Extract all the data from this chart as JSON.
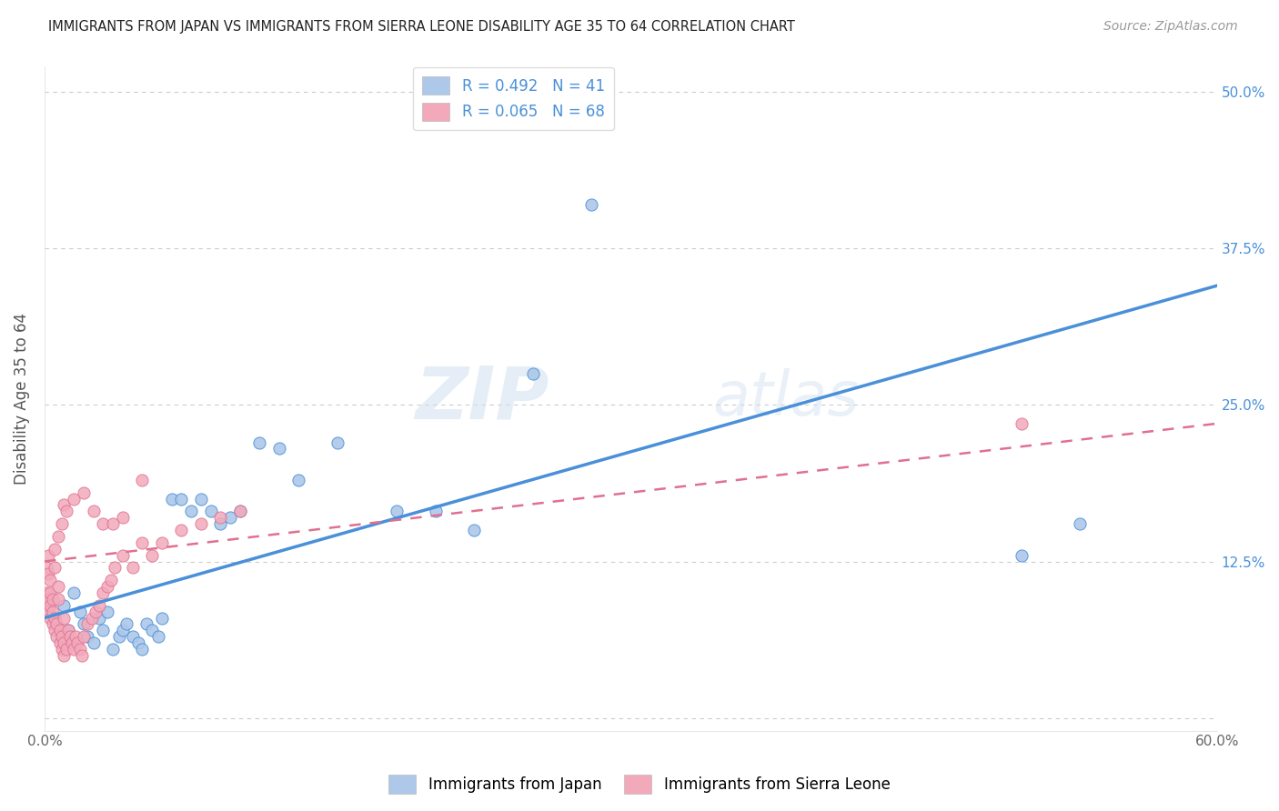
{
  "title": "IMMIGRANTS FROM JAPAN VS IMMIGRANTS FROM SIERRA LEONE DISABILITY AGE 35 TO 64 CORRELATION CHART",
  "source": "Source: ZipAtlas.com",
  "ylabel": "Disability Age 35 to 64",
  "xlim": [
    0.0,
    0.6
  ],
  "ylim": [
    -0.01,
    0.52
  ],
  "legend_r1": "R = 0.492",
  "legend_n1": "N = 41",
  "legend_r2": "R = 0.065",
  "legend_n2": "N = 68",
  "legend_label1": "Immigrants from Japan",
  "legend_label2": "Immigrants from Sierra Leone",
  "color_japan": "#adc8e8",
  "color_japan_line": "#4a90d9",
  "color_sl": "#f2aabb",
  "color_sl_line": "#e07090",
  "watermark_zip": "ZIP",
  "watermark_atlas": "atlas",
  "japan_line_x0": 0.0,
  "japan_line_y0": 0.08,
  "japan_line_x1": 0.6,
  "japan_line_y1": 0.345,
  "sl_line_x0": 0.0,
  "sl_line_y0": 0.125,
  "sl_line_x1": 0.6,
  "sl_line_y1": 0.235,
  "japan_x": [
    0.005,
    0.01,
    0.012,
    0.015,
    0.018,
    0.02,
    0.022,
    0.025,
    0.028,
    0.03,
    0.032,
    0.035,
    0.038,
    0.04,
    0.042,
    0.045,
    0.048,
    0.05,
    0.052,
    0.055,
    0.058,
    0.06,
    0.065,
    0.07,
    0.075,
    0.08,
    0.085,
    0.09,
    0.095,
    0.1,
    0.11,
    0.12,
    0.13,
    0.15,
    0.18,
    0.2,
    0.22,
    0.25,
    0.5,
    0.53,
    0.28
  ],
  "japan_y": [
    0.08,
    0.09,
    0.07,
    0.1,
    0.085,
    0.075,
    0.065,
    0.06,
    0.08,
    0.07,
    0.085,
    0.055,
    0.065,
    0.07,
    0.075,
    0.065,
    0.06,
    0.055,
    0.075,
    0.07,
    0.065,
    0.08,
    0.175,
    0.175,
    0.165,
    0.175,
    0.165,
    0.155,
    0.16,
    0.165,
    0.22,
    0.215,
    0.19,
    0.22,
    0.165,
    0.165,
    0.15,
    0.275,
    0.13,
    0.155,
    0.41
  ],
  "sl_x": [
    0.001,
    0.001,
    0.001,
    0.002,
    0.002,
    0.002,
    0.002,
    0.003,
    0.003,
    0.003,
    0.003,
    0.004,
    0.004,
    0.004,
    0.005,
    0.005,
    0.005,
    0.006,
    0.006,
    0.007,
    0.007,
    0.008,
    0.008,
    0.009,
    0.009,
    0.01,
    0.01,
    0.01,
    0.011,
    0.012,
    0.013,
    0.014,
    0.015,
    0.016,
    0.017,
    0.018,
    0.019,
    0.02,
    0.022,
    0.024,
    0.026,
    0.028,
    0.03,
    0.032,
    0.034,
    0.036,
    0.04,
    0.045,
    0.05,
    0.055,
    0.06,
    0.07,
    0.08,
    0.09,
    0.1,
    0.03,
    0.04,
    0.01,
    0.02,
    0.05,
    0.015,
    0.025,
    0.035,
    0.005,
    0.007,
    0.009,
    0.011,
    0.5
  ],
  "sl_y": [
    0.1,
    0.12,
    0.09,
    0.085,
    0.095,
    0.115,
    0.13,
    0.08,
    0.09,
    0.1,
    0.11,
    0.075,
    0.085,
    0.095,
    0.07,
    0.08,
    0.12,
    0.065,
    0.075,
    0.095,
    0.105,
    0.06,
    0.07,
    0.055,
    0.065,
    0.05,
    0.06,
    0.08,
    0.055,
    0.07,
    0.065,
    0.06,
    0.055,
    0.065,
    0.06,
    0.055,
    0.05,
    0.065,
    0.075,
    0.08,
    0.085,
    0.09,
    0.1,
    0.105,
    0.11,
    0.12,
    0.13,
    0.12,
    0.14,
    0.13,
    0.14,
    0.15,
    0.155,
    0.16,
    0.165,
    0.155,
    0.16,
    0.17,
    0.18,
    0.19,
    0.175,
    0.165,
    0.155,
    0.135,
    0.145,
    0.155,
    0.165,
    0.235
  ],
  "ytick_vals": [
    0.0,
    0.125,
    0.25,
    0.375,
    0.5
  ],
  "ytick_labels": [
    "",
    "12.5%",
    "25.0%",
    "37.5%",
    "50.0%"
  ],
  "xtick_vals": [
    0.0,
    0.1,
    0.2,
    0.3,
    0.4,
    0.5,
    0.6
  ],
  "xtick_labels": [
    "0.0%",
    "",
    "",
    "",
    "",
    "",
    "60.0%"
  ]
}
